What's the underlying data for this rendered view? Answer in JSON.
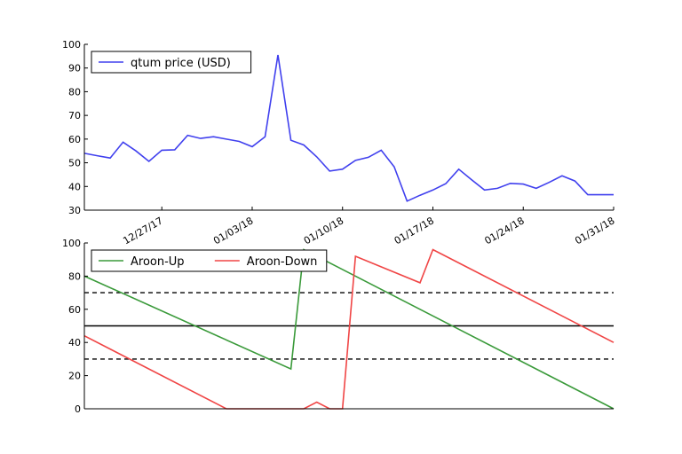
{
  "colors": {
    "price": "#4040ee",
    "aroon_up": "#3a9a3a",
    "aroon_down": "#f04545",
    "ref_line": "#000000"
  },
  "chart_data": [
    {
      "type": "line",
      "title": "",
      "xlabel": "",
      "ylabel": "",
      "x_type": "date",
      "xlim": [
        "2017-12-21",
        "2018-01-31"
      ],
      "ylim": [
        30,
        100
      ],
      "y_ticks": [
        30,
        40,
        50,
        60,
        70,
        80,
        90,
        100
      ],
      "x_ticks": [
        {
          "date": "2017-12-27",
          "label": "12/27/17"
        },
        {
          "date": "2018-01-03",
          "label": "01/03/18"
        },
        {
          "date": "2018-01-10",
          "label": "01/10/18"
        },
        {
          "date": "2018-01-17",
          "label": "01/17/18"
        },
        {
          "date": "2018-01-24",
          "label": "01/24/18"
        },
        {
          "date": "2018-01-31",
          "label": "01/31/18"
        }
      ],
      "legend_position": "top-left",
      "x": [
        "2017-12-21",
        "2017-12-22",
        "2017-12-23",
        "2017-12-24",
        "2017-12-25",
        "2017-12-26",
        "2017-12-27",
        "2017-12-28",
        "2017-12-29",
        "2017-12-30",
        "2017-12-31",
        "2018-01-01",
        "2018-01-02",
        "2018-01-03",
        "2018-01-04",
        "2018-01-05",
        "2018-01-06",
        "2018-01-07",
        "2018-01-08",
        "2018-01-09",
        "2018-01-10",
        "2018-01-11",
        "2018-01-12",
        "2018-01-13",
        "2018-01-14",
        "2018-01-15",
        "2018-01-16",
        "2018-01-17",
        "2018-01-18",
        "2018-01-19",
        "2018-01-20",
        "2018-01-21",
        "2018-01-22",
        "2018-01-23",
        "2018-01-24",
        "2018-01-25",
        "2018-01-26",
        "2018-01-27",
        "2018-01-28",
        "2018-01-29",
        "2018-01-30",
        "2018-01-31"
      ],
      "series": [
        {
          "name": "qtum price (USD)",
          "color_key": "price",
          "values": [
            54,
            53,
            52,
            58.7,
            55,
            50.6,
            55.3,
            55.5,
            61.6,
            60.3,
            61,
            60,
            59,
            56.8,
            61,
            95.5,
            59.5,
            57.5,
            52.5,
            46.5,
            47.3,
            51,
            52.3,
            55.3,
            48.3,
            33.8,
            36.3,
            38.5,
            41.2,
            47.3,
            42.8,
            38.5,
            39.2,
            41.3,
            41,
            39.2,
            41.7,
            44.5,
            42.3,
            36.5,
            36.5,
            36.5
          ]
        }
      ]
    },
    {
      "type": "line",
      "title": "",
      "xlabel": "",
      "ylabel": "",
      "x_type": "date",
      "xlim": [
        "2017-12-21",
        "2018-01-31"
      ],
      "ylim": [
        0,
        100
      ],
      "y_ticks": [
        0,
        20,
        40,
        60,
        80,
        100
      ],
      "legend_position": "top-left",
      "reference_lines": [
        {
          "y": 70,
          "style": "dashed"
        },
        {
          "y": 50,
          "style": "solid"
        },
        {
          "y": 30,
          "style": "dashed"
        }
      ],
      "series": [
        {
          "name": "Aroon-Up",
          "color_key": "aroon_up",
          "points": [
            {
              "x": "2017-12-21",
              "y": 80
            },
            {
              "x": "2018-01-06",
              "y": 24
            },
            {
              "x": "2018-01-07",
              "y": 96
            },
            {
              "x": "2018-01-31",
              "y": 0
            }
          ]
        },
        {
          "name": "Aroon-Down",
          "color_key": "aroon_down",
          "points": [
            {
              "x": "2017-12-21",
              "y": 44
            },
            {
              "x": "2018-01-01",
              "y": 0
            },
            {
              "x": "2018-01-06",
              "y": 0
            },
            {
              "x": "2018-01-07",
              "y": 0
            },
            {
              "x": "2018-01-08",
              "y": 4
            },
            {
              "x": "2018-01-09",
              "y": 0
            },
            {
              "x": "2018-01-10",
              "y": 0
            },
            {
              "x": "2018-01-11",
              "y": 92
            },
            {
              "x": "2018-01-16",
              "y": 76
            },
            {
              "x": "2018-01-17",
              "y": 96
            },
            {
              "x": "2018-01-31",
              "y": 40
            }
          ]
        }
      ]
    }
  ]
}
